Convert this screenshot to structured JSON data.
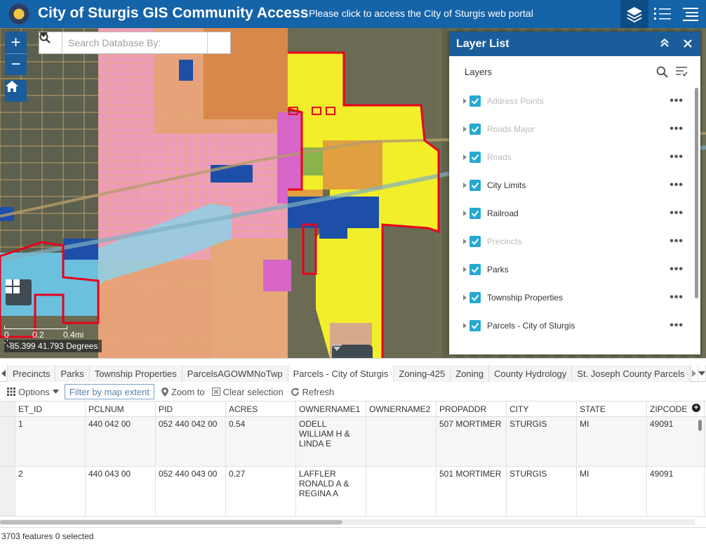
{
  "header": {
    "title": "City of Sturgis GIS Community Access",
    "portal_link": "Please click to access the City of Sturgis web portal",
    "icons": [
      "layer-list-icon",
      "legend-list-icon",
      "menu-icon"
    ]
  },
  "map": {
    "search": {
      "placeholder": "Search Database By:"
    },
    "zoom_in": "+",
    "zoom_out": "−",
    "scale": {
      "tick_0": "0",
      "tick_1": "0.2",
      "tick_2": "0.4mi"
    },
    "coordinates": "-85.399 41.793 Degrees"
  },
  "layer_panel": {
    "title": "Layer List",
    "subtitle": "Layers",
    "layers": [
      {
        "label": "Address Points",
        "dim": true
      },
      {
        "label": "Roads Major",
        "dim": true
      },
      {
        "label": "Roads",
        "dim": true
      },
      {
        "label": "City Limits",
        "dim": false
      },
      {
        "label": "Railroad",
        "dim": false
      },
      {
        "label": "Precincts",
        "dim": true
      },
      {
        "label": "Parks",
        "dim": false
      },
      {
        "label": "Township Properties",
        "dim": false
      },
      {
        "label": "Parcels - City of Sturgis",
        "dim": false
      }
    ]
  },
  "attribute_table": {
    "tabs": [
      "Precincts",
      "Parks",
      "Township Properties",
      "ParcelsAGOWMNoTwp",
      "Parcels - City of Sturgis",
      "Zoning-425",
      "Zoning",
      "County Hydrology",
      "St. Joseph County Parcels"
    ],
    "active_tab_index": 4,
    "toolbar": {
      "options": "Options",
      "filter": "Filter by map extent",
      "zoom_to": "Zoom to",
      "clear_selection": "Clear selection",
      "refresh": "Refresh"
    },
    "columns": [
      "ET_ID",
      "PCLNUM",
      "PID",
      "ACRES",
      "OWNERNAME1",
      "OWNERNAME2",
      "PROPADDR",
      "CITY",
      "STATE",
      "ZIPCODE"
    ],
    "rows": [
      [
        "1",
        "440 042 00",
        "052 440 042 00",
        "0.54",
        "ODELL WILLIAM H & LINDA E",
        "",
        "507 MORTIMER",
        "STURGIS",
        "MI",
        "49091"
      ],
      [
        "2",
        "440 043 00",
        "052 440 043 00",
        "0.27",
        "LAFFLER RONALD A & REGINA A",
        "",
        "501 MORTIMER",
        "STURGIS",
        "MI",
        "49091"
      ]
    ],
    "footer": "3703 features 0 selected"
  },
  "colors": {
    "header_blue": "#1563a8",
    "panel_blue": "#1a5d9a",
    "checkbox_cyan": "#24a9d1",
    "city_limits_red": "#e8001c",
    "industrial_yellow": "#f2ef2a",
    "residential_pink": "#ee9ab8",
    "commercial_blue": "#1d4fa8"
  }
}
